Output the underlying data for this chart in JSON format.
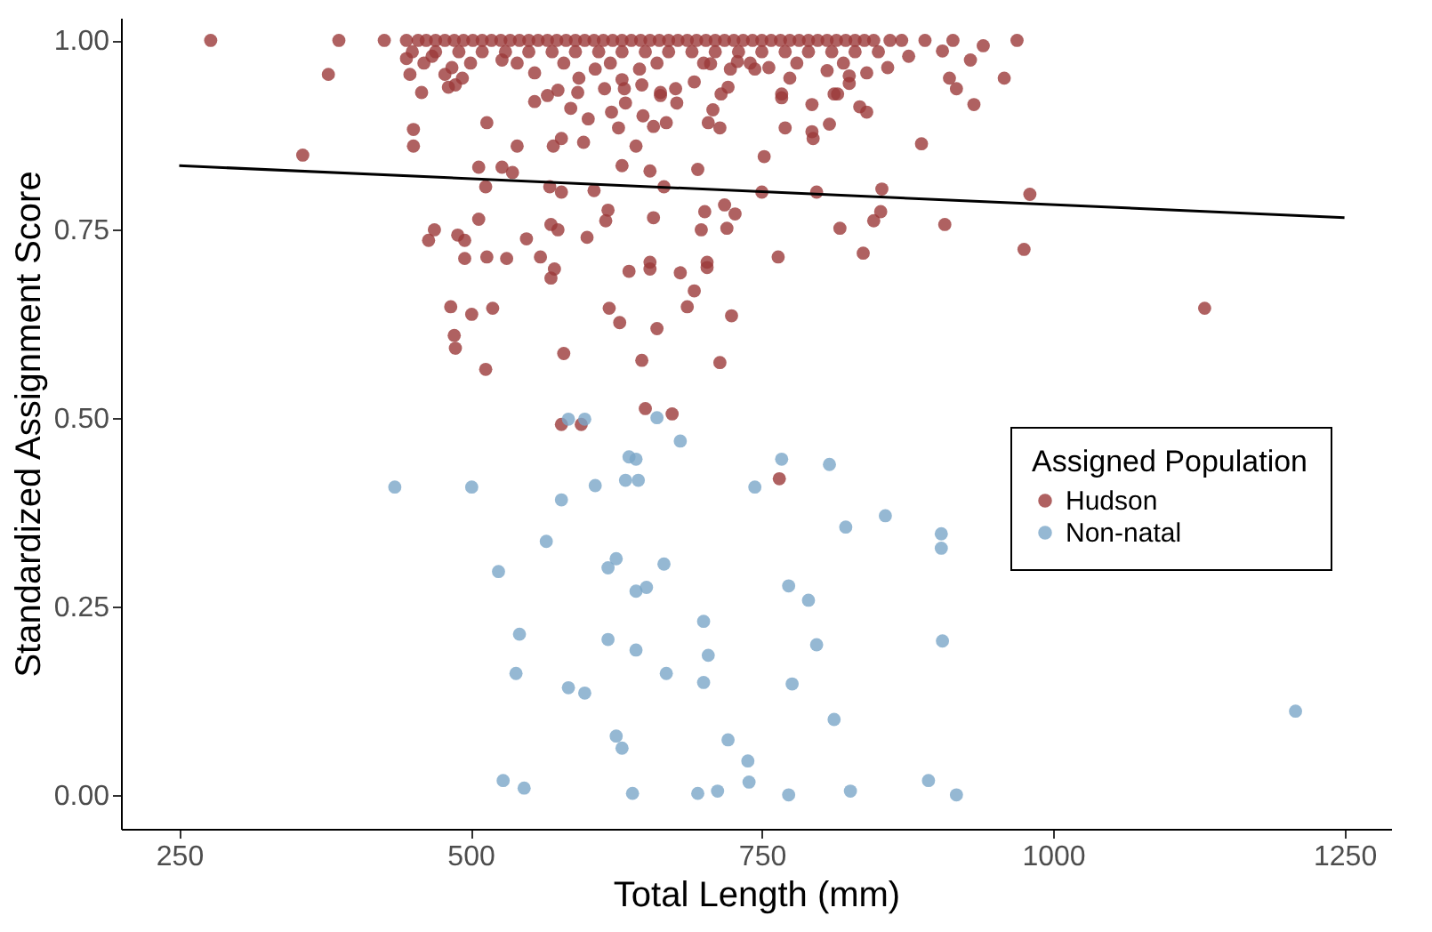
{
  "chart_data": {
    "type": "scatter",
    "xlabel": "Total Length (mm)",
    "ylabel": "Standardized Assignment Score",
    "legend_title": "Assigned Population",
    "xlim": [
      200,
      1290
    ],
    "ylim": [
      -0.045,
      1.03
    ],
    "xticks": [
      250,
      500,
      750,
      {
        "value": 1000,
        "label": "1000"
      },
      {
        "value": 1250,
        "label": "1250"
      }
    ],
    "yticks": [
      {
        "value": 0,
        "label": "0.00"
      },
      {
        "value": 0.25,
        "label": "0.25"
      },
      {
        "value": 0.5,
        "label": "0.50"
      },
      {
        "value": 0.75,
        "label": "0.75"
      },
      {
        "value": 1,
        "label": "1.00"
      }
    ],
    "grid": false,
    "legend": "right",
    "series": [
      {
        "name": "Hudson",
        "color": "#9b3a3a",
        "marker": "circle",
        "x": [
          277,
          387,
          378,
          356,
          426,
          451,
          451,
          448,
          458,
          514,
          540,
          507,
          527,
          536,
          513,
          571,
          578,
          597,
          568,
          578,
          606,
          630,
          642,
          654,
          666,
          695,
          627,
          648,
          657,
          668,
          621,
          586,
          601,
          704,
          714,
          708,
          469,
          464,
          489,
          495,
          507,
          495,
          514,
          531,
          548,
          560,
          569,
          575,
          600,
          618,
          616,
          657,
          572,
          569,
          636,
          654,
          654,
          680,
          692,
          703,
          703,
          701,
          698,
          720,
          718,
          727,
          483,
          501,
          519,
          486,
          487,
          513,
          580,
          619,
          628,
          660,
          686,
          724,
          647,
          714,
          578,
          595,
          650,
          673,
          969,
          940,
          929,
          958,
          911,
          917,
          932,
          887,
          980,
          975,
          1130,
          907,
          853,
          852,
          846,
          837,
          817,
          797,
          764,
          750,
          752,
          770,
          793,
          794,
          808,
          793,
          834,
          840,
          812,
          815,
          825,
          825,
          840,
          858,
          806,
          774,
          767,
          767,
          744,
          756,
          876,
          905,
          860,
          890,
          914,
          765,
          445,
          467,
          484,
          478,
          487,
          481,
          493,
          527,
          555,
          555,
          566,
          575,
          593,
          592,
          607,
          615,
          630,
          632,
          633,
          645,
          647,
          663,
          663,
          676,
          677,
          692,
          706,
          723,
          721,
          715,
          729,
          445,
          455,
          462,
          470,
          478,
          486,
          494,
          502,
          510,
          518,
          526,
          534,
          542,
          550,
          558,
          566,
          574,
          582,
          590,
          598,
          606,
          614,
          622,
          630,
          638,
          646,
          654,
          662,
          670,
          678,
          686,
          694,
          702,
          710,
          718,
          726,
          734,
          742,
          750,
          758,
          766,
          774,
          782,
          790,
          798,
          806,
          814,
          822,
          830,
          838,
          846,
          870,
          450,
          470,
          490,
          510,
          530,
          550,
          570,
          590,
          610,
          630,
          650,
          670,
          690,
          710,
          730,
          750,
          770,
          790,
          810,
          830,
          850,
          460,
          500,
          540,
          580,
          620,
          660,
          700,
          740,
          780,
          820
        ],
        "values": [
          1.0,
          1.0,
          0.955,
          0.848,
          1.0,
          0.882,
          0.86,
          0.955,
          0.931,
          0.891,
          0.86,
          0.832,
          0.832,
          0.825,
          0.806,
          0.86,
          0.87,
          0.865,
          0.806,
          0.799,
          0.801,
          0.834,
          0.86,
          0.827,
          0.806,
          0.829,
          0.884,
          0.9,
          0.886,
          0.891,
          0.905,
          0.91,
          0.896,
          0.891,
          0.884,
          0.908,
          0.749,
          0.735,
          0.742,
          0.735,
          0.763,
          0.711,
          0.713,
          0.711,
          0.737,
          0.713,
          0.756,
          0.749,
          0.739,
          0.775,
          0.761,
          0.765,
          0.697,
          0.685,
          0.694,
          0.706,
          0.697,
          0.692,
          0.668,
          0.706,
          0.699,
          0.773,
          0.749,
          0.751,
          0.782,
          0.77,
          0.647,
          0.637,
          0.645,
          0.609,
          0.592,
          0.564,
          0.585,
          0.645,
          0.626,
          0.618,
          0.647,
          0.635,
          0.576,
          0.573,
          0.491,
          0.491,
          0.512,
          0.505,
          1.0,
          0.993,
          0.974,
          0.95,
          0.95,
          0.936,
          0.915,
          0.863,
          0.796,
          0.723,
          0.645,
          0.756,
          0.803,
          0.773,
          0.761,
          0.718,
          0.751,
          0.799,
          0.713,
          0.799,
          0.846,
          0.884,
          0.879,
          0.87,
          0.889,
          0.915,
          0.912,
          0.905,
          0.929,
          0.929,
          0.953,
          0.943,
          0.957,
          0.964,
          0.96,
          0.95,
          0.929,
          0.924,
          0.962,
          0.964,
          0.979,
          0.986,
          1.0,
          1.0,
          1.0,
          0.419,
          0.976,
          0.979,
          0.964,
          0.955,
          0.941,
          0.938,
          0.95,
          0.974,
          0.957,
          0.919,
          0.927,
          0.934,
          0.95,
          0.931,
          0.962,
          0.936,
          0.948,
          0.936,
          0.917,
          0.962,
          0.941,
          0.931,
          0.927,
          0.936,
          0.917,
          0.945,
          0.969,
          0.962,
          0.938,
          0.929,
          0.972,
          1.0,
          1.0,
          1.0,
          1.0,
          1.0,
          1.0,
          1.0,
          1.0,
          1.0,
          1.0,
          1.0,
          1.0,
          1.0,
          1.0,
          1.0,
          1.0,
          1.0,
          1.0,
          1.0,
          1.0,
          1.0,
          1.0,
          1.0,
          1.0,
          1.0,
          1.0,
          1.0,
          1.0,
          1.0,
          1.0,
          1.0,
          1.0,
          1.0,
          1.0,
          1.0,
          1.0,
          1.0,
          1.0,
          1.0,
          1.0,
          1.0,
          1.0,
          1.0,
          1.0,
          1.0,
          1.0,
          1.0,
          1.0,
          1.0,
          1.0,
          1.0,
          1.0,
          0.985,
          0.985,
          0.985,
          0.985,
          0.985,
          0.985,
          0.985,
          0.985,
          0.985,
          0.985,
          0.985,
          0.985,
          0.985,
          0.985,
          0.985,
          0.985,
          0.985,
          0.985,
          0.985,
          0.985,
          0.985,
          0.97,
          0.97,
          0.97,
          0.97,
          0.97,
          0.97,
          0.97,
          0.97,
          0.97,
          0.97
        ]
      },
      {
        "name": "Non-natal",
        "color": "#7aa6c8",
        "marker": "circle",
        "x": [
          584,
          598,
          660,
          435,
          501,
          578,
          607,
          636,
          642,
          633,
          644,
          680,
          744,
          565,
          524,
          618,
          625,
          666,
          642,
          651,
          700,
          542,
          618,
          642,
          704,
          539,
          584,
          598,
          668,
          700,
          625,
          630,
          721,
          738,
          528,
          546,
          639,
          695,
          712,
          739,
          767,
          808,
          822,
          856,
          904,
          904,
          773,
          790,
          797,
          905,
          776,
          812,
          773,
          826,
          893,
          917,
          1208
        ],
        "values": [
          0.498,
          0.498,
          0.5,
          0.408,
          0.408,
          0.391,
          0.41,
          0.448,
          0.445,
          0.417,
          0.417,
          0.469,
          0.408,
          0.336,
          0.296,
          0.301,
          0.313,
          0.306,
          0.27,
          0.275,
          0.23,
          0.213,
          0.206,
          0.192,
          0.185,
          0.161,
          0.142,
          0.135,
          0.161,
          0.149,
          0.078,
          0.062,
          0.073,
          0.045,
          0.019,
          0.009,
          0.002,
          0.002,
          0.005,
          0.017,
          0.445,
          0.438,
          0.355,
          0.37,
          0.346,
          0.327,
          0.277,
          0.258,
          0.199,
          0.204,
          0.147,
          0.1,
          0.0,
          0.005,
          0.019,
          0.0,
          0.111
        ]
      },
      {
        "type": "line",
        "color": "#000000",
        "marker": "none",
        "x": [
          250,
          1250
        ],
        "values": [
          0.834,
          0.765
        ]
      }
    ]
  }
}
